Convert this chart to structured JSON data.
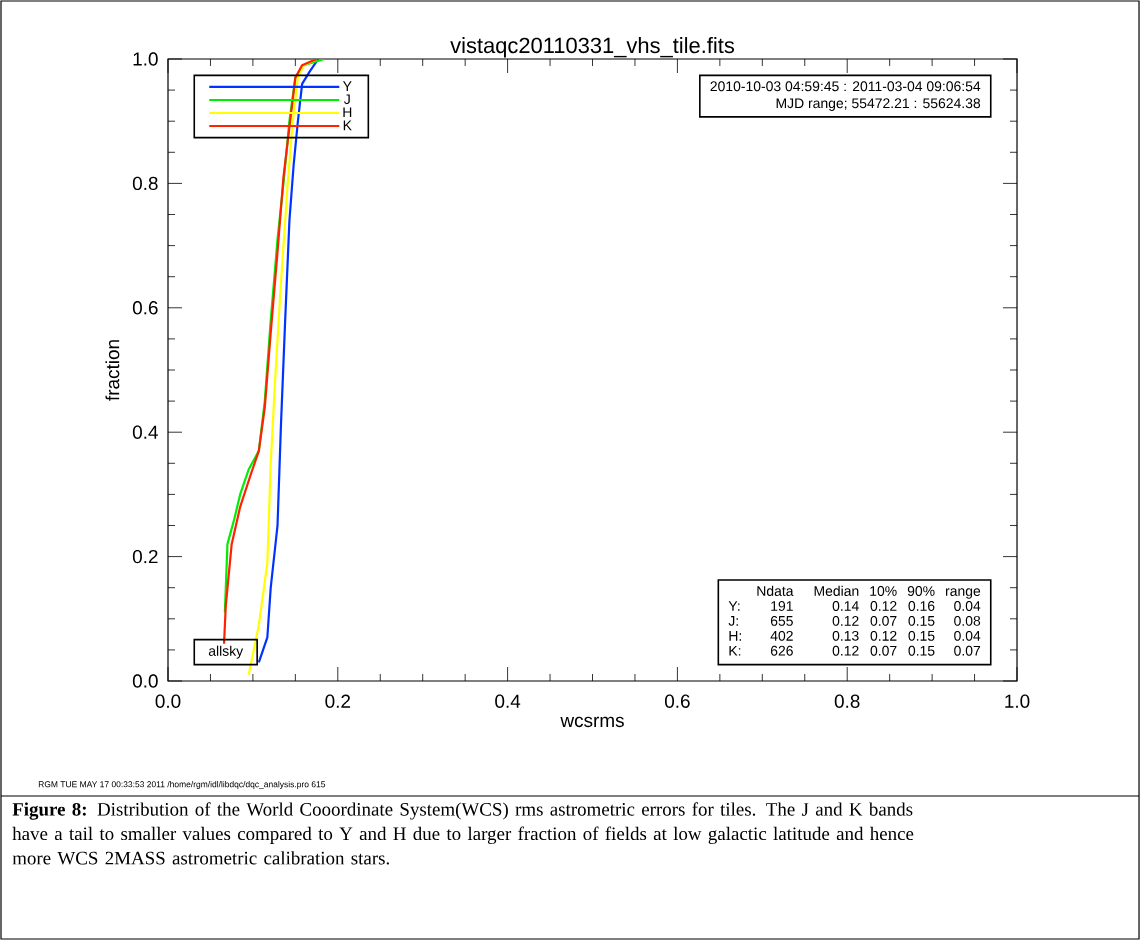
{
  "chart_data": {
    "type": "line",
    "title": "vistaqc20110331_vhs_tile.fits",
    "xlabel": "wcsrms",
    "ylabel": "fraction",
    "series": [
      {
        "name": "Y",
        "color": "#0033ff",
        "x": [
          0.107,
          0.117,
          0.121,
          0.129,
          0.133,
          0.138,
          0.143,
          0.148,
          0.153,
          0.158,
          0.167,
          0.177
        ],
        "values": [
          0.03,
          0.07,
          0.15,
          0.25,
          0.41,
          0.58,
          0.74,
          0.83,
          0.9,
          0.96,
          0.98,
          1.0
        ]
      },
      {
        "name": "J",
        "color": "#00ee00",
        "x": [
          0.067,
          0.07,
          0.078,
          0.085,
          0.095,
          0.107,
          0.114,
          0.121,
          0.129,
          0.136,
          0.143,
          0.15,
          0.16,
          0.184
        ],
        "values": [
          0.11,
          0.22,
          0.26,
          0.3,
          0.34,
          0.37,
          0.45,
          0.58,
          0.71,
          0.8,
          0.9,
          0.97,
          0.99,
          1.0
        ]
      },
      {
        "name": "H",
        "color": "#ffff00",
        "x": [
          0.095,
          0.107,
          0.117,
          0.121,
          0.126,
          0.133,
          0.141,
          0.147,
          0.153,
          0.16,
          0.175
        ],
        "values": [
          0.01,
          0.09,
          0.19,
          0.35,
          0.48,
          0.64,
          0.8,
          0.9,
          0.97,
          0.99,
          1.0
        ]
      },
      {
        "name": "K",
        "color": "#ff2200",
        "x": [
          0.066,
          0.068,
          0.075,
          0.085,
          0.097,
          0.107,
          0.114,
          0.121,
          0.129,
          0.136,
          0.143,
          0.15,
          0.158,
          0.175
        ],
        "values": [
          0.06,
          0.12,
          0.22,
          0.28,
          0.33,
          0.37,
          0.44,
          0.56,
          0.69,
          0.81,
          0.89,
          0.97,
          0.99,
          1.0
        ]
      }
    ],
    "xlim": [
      0,
      1
    ],
    "ylim": [
      0,
      1
    ],
    "xticks": [
      {
        "value": 0,
        "label": "0.0"
      },
      {
        "value": 0.2,
        "label": "0.2"
      },
      {
        "value": 0.4,
        "label": "0.4"
      },
      {
        "value": 0.6,
        "label": "0.6"
      },
      {
        "value": 0.8,
        "label": "0.8"
      },
      {
        "value": 1,
        "label": "1.0"
      }
    ],
    "yticks": [
      {
        "value": 0,
        "label": "0.0"
      },
      {
        "value": 0.2,
        "label": "0.2"
      },
      {
        "value": 0.4,
        "label": "0.4"
      },
      {
        "value": 0.6,
        "label": "0.6"
      },
      {
        "value": 0.8,
        "label": "0.8"
      },
      {
        "value": 1,
        "label": "1.0"
      }
    ],
    "grid": false,
    "legend": "top left",
    "marker": "none",
    "line_style": "solid",
    "annotations": [
      "2010-10-03 04:59:45 : 2011-03-04 09:06:54",
      "MJD range; 55472.21 : 55624.38",
      "allsky",
      "Ndata",
      "Median",
      "10%",
      "90%",
      "range",
      "Y:",
      "191",
      "0.14",
      "0.12",
      "0.16",
      "0.04",
      "J:",
      "655",
      "0.12",
      "0.07",
      "0.15",
      "0.08",
      "H:",
      "402",
      "0.13",
      "0.12",
      "0.15",
      "0.04",
      "K:",
      "626",
      "0.12",
      "0.07",
      "0.15",
      "0.07",
      "RGM TUE MAY 17 00:33:53 2011 /home/rgm/idl/libdqc/dqc_analysis.pro 615",
      "**Figure 8:** Distribution of the World Cooordinate System(WCS) rms astrometric errors for tiles. The J and K bands have a tail to smaller values compared to Y and H due to larger fraction of fields at low galactic latitude and hence more WCS 2MASS astrometric calibration stars."
    ]
  }
}
